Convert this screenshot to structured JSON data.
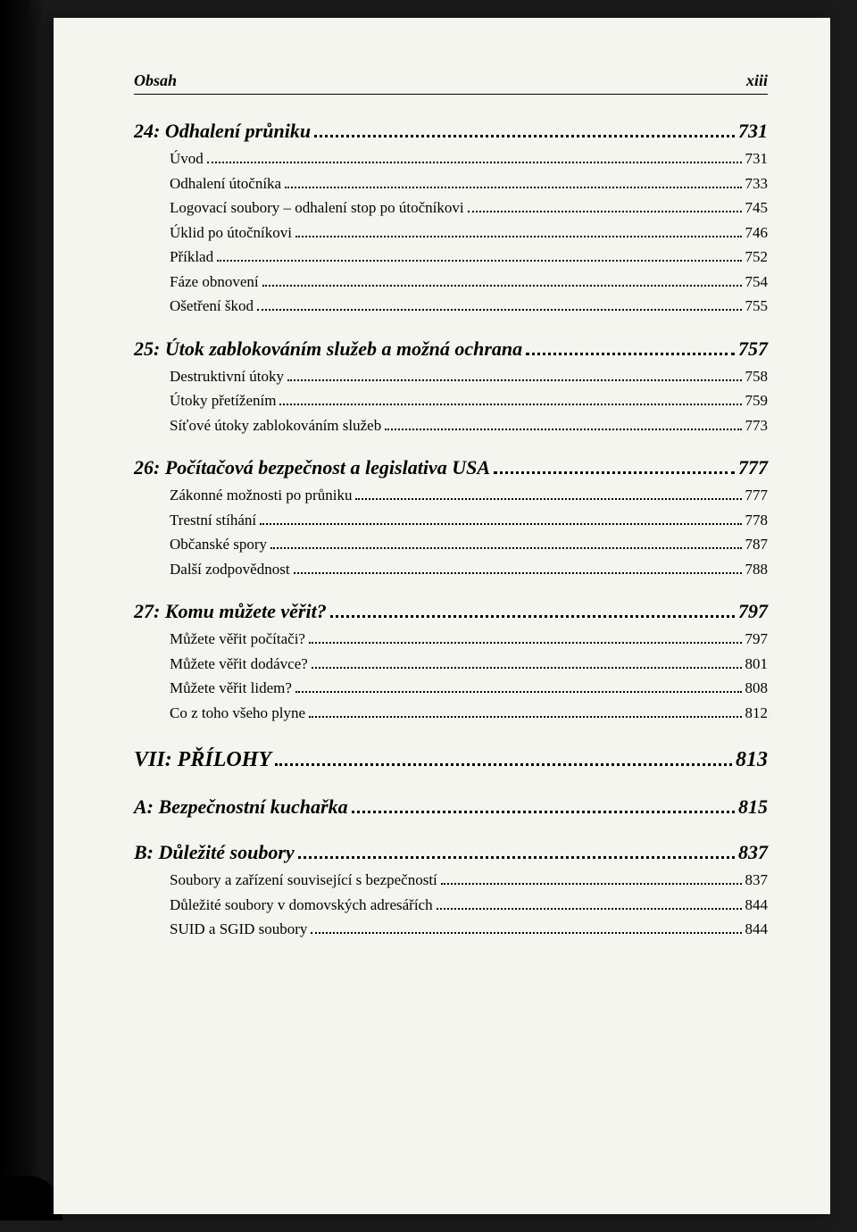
{
  "header": {
    "left": "Obsah",
    "right": "xiii"
  },
  "entries": [
    {
      "type": "chapter",
      "label": "24: Odhalení průniku",
      "page": "731"
    },
    {
      "type": "sub",
      "label": "Úvod",
      "page": "731"
    },
    {
      "type": "sub",
      "label": "Odhalení útočníka",
      "page": "733"
    },
    {
      "type": "sub",
      "label": "Logovací soubory – odhalení stop po útočníkovi",
      "page": "745"
    },
    {
      "type": "sub",
      "label": "Úklid po útočníkovi",
      "page": "746"
    },
    {
      "type": "sub",
      "label": "Příklad",
      "page": "752"
    },
    {
      "type": "sub",
      "label": "Fáze obnovení",
      "page": "754"
    },
    {
      "type": "sub",
      "label": "Ošetření škod",
      "page": "755"
    },
    {
      "type": "chapter",
      "label": "25: Útok zablokováním služeb a možná ochrana",
      "page": "757"
    },
    {
      "type": "sub",
      "label": "Destruktivní útoky",
      "page": "758"
    },
    {
      "type": "sub",
      "label": "Útoky přetížením",
      "page": "759"
    },
    {
      "type": "sub",
      "label": "Síťové útoky zablokováním služeb",
      "page": "773"
    },
    {
      "type": "chapter",
      "label": "26: Počítačová bezpečnost a legislativa USA",
      "page": "777"
    },
    {
      "type": "sub",
      "label": "Zákonné možnosti po průniku",
      "page": "777"
    },
    {
      "type": "sub",
      "label": "Trestní stíhání",
      "page": "778"
    },
    {
      "type": "sub",
      "label": "Občanské spory",
      "page": "787"
    },
    {
      "type": "sub",
      "label": "Další zodpovědnost",
      "page": "788"
    },
    {
      "type": "chapter",
      "label": "27: Komu můžete věřit?",
      "page": "797"
    },
    {
      "type": "sub",
      "label": "Můžete věřit počítači?",
      "page": "797"
    },
    {
      "type": "sub",
      "label": "Můžete věřit dodávce?",
      "page": "801"
    },
    {
      "type": "sub",
      "label": "Můžete věřit lidem?",
      "page": "808"
    },
    {
      "type": "sub",
      "label": "Co z toho všeho plyne",
      "page": "812"
    },
    {
      "type": "part",
      "label": "VII: PŘÍLOHY",
      "page": "813"
    },
    {
      "type": "appendix",
      "label": "A: Bezpečnostní kuchařka",
      "page": "815"
    },
    {
      "type": "appendix",
      "label": "B: Důležité soubory",
      "page": "837"
    },
    {
      "type": "sub",
      "label": "Soubory a zařízení související s bezpečností",
      "page": "837"
    },
    {
      "type": "sub",
      "label": "Důležité soubory v domovských adresářích",
      "page": "844"
    },
    {
      "type": "sub",
      "label": "SUID a SGID soubory",
      "page": "844"
    }
  ]
}
